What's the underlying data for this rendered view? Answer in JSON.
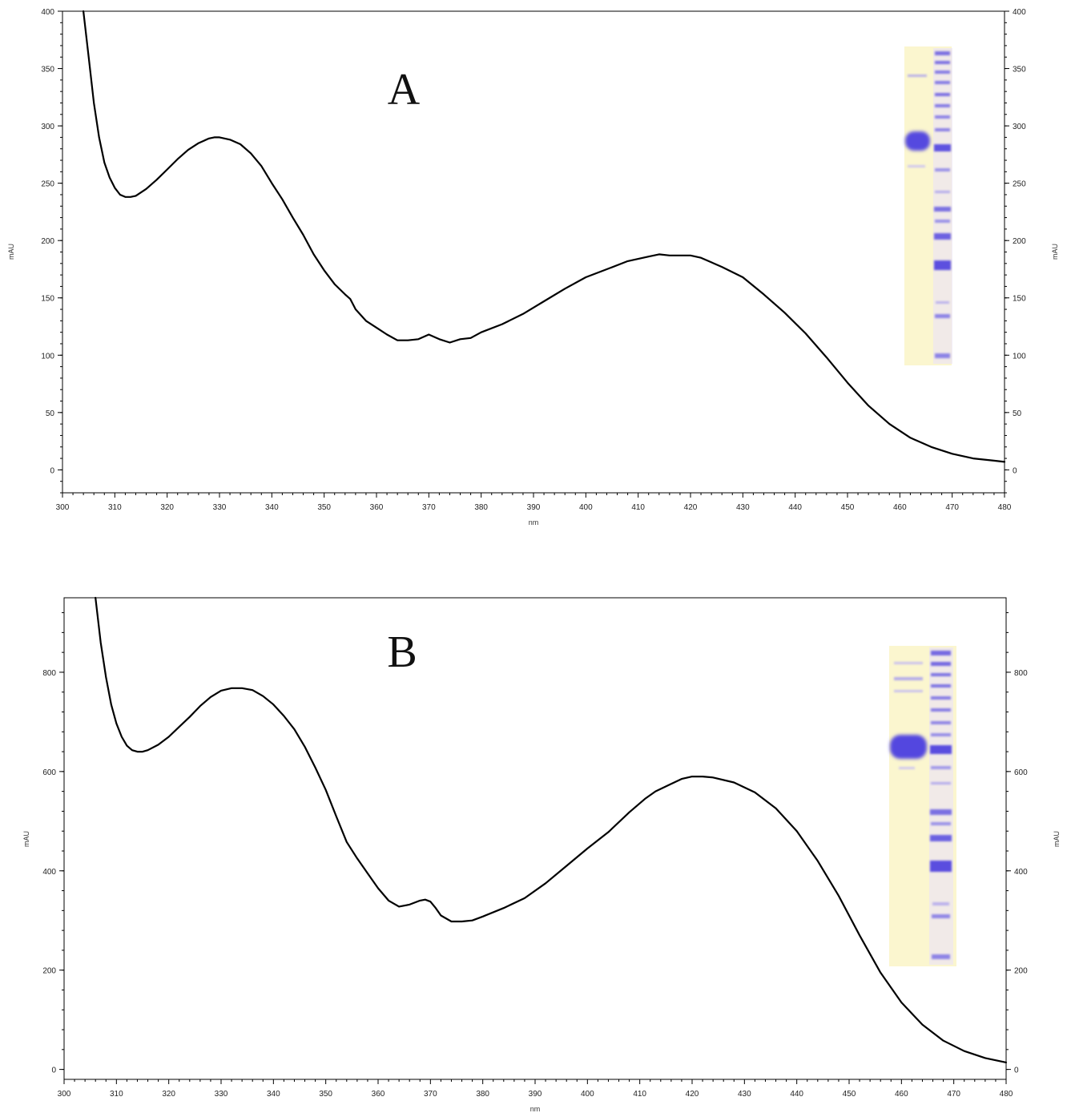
{
  "colors": {
    "line": "#000000",
    "gel_background": "#fbf6cf",
    "gel_band": "#6a5de0"
  },
  "chart_data": [
    {
      "type": "line",
      "panel_label": "A",
      "xlabel": "nm",
      "ylabel": "mAU",
      "ylabel_right": "mAU",
      "xlim": [
        300,
        480
      ],
      "ylim": [
        -20,
        400
      ],
      "xticks": [
        300,
        310,
        320,
        330,
        340,
        350,
        360,
        370,
        380,
        390,
        400,
        410,
        420,
        430,
        440,
        450,
        460,
        470,
        480
      ],
      "yticks": [
        0,
        50,
        100,
        150,
        200,
        250,
        300,
        350,
        400
      ],
      "grid": false,
      "inset": "SDS-PAGE gel image (sample lane and marker lane), top-right",
      "series": [
        {
          "x": [
            304,
            305,
            306,
            307,
            308,
            309,
            310,
            311,
            312,
            313,
            314,
            316,
            318,
            320,
            322,
            324,
            326,
            328,
            329,
            330,
            332,
            334,
            336,
            338,
            340,
            342,
            344,
            346,
            348,
            350,
            352,
            354,
            355,
            356,
            358,
            360,
            362,
            364,
            366,
            368,
            370,
            372,
            374,
            376,
            378,
            380,
            384,
            388,
            392,
            396,
            400,
            404,
            408,
            412,
            414,
            416,
            420,
            422,
            426,
            430,
            434,
            438,
            442,
            446,
            450,
            454,
            458,
            462,
            466,
            470,
            474,
            478,
            480
          ],
          "y": [
            400,
            360,
            320,
            290,
            268,
            255,
            246,
            240,
            238,
            238,
            239,
            245,
            253,
            262,
            271,
            279,
            285,
            289,
            290,
            290,
            288,
            284,
            276,
            265,
            250,
            236,
            220,
            205,
            188,
            174,
            162,
            153,
            149,
            140,
            130,
            124,
            118,
            113,
            113,
            114,
            118,
            114,
            111,
            114,
            115,
            120,
            127,
            136,
            147,
            158,
            168,
            175,
            182,
            186,
            188,
            187,
            187,
            185,
            177,
            168,
            153,
            137,
            119,
            98,
            76,
            56,
            40,
            28,
            20,
            14,
            10,
            8,
            7
          ]
        }
      ]
    },
    {
      "type": "line",
      "panel_label": "B",
      "xlabel": "nm",
      "ylabel": "mAU",
      "ylabel_right": "mAU",
      "xlim": [
        300,
        480
      ],
      "ylim": [
        -20,
        950
      ],
      "xticks": [
        300,
        310,
        320,
        330,
        340,
        350,
        360,
        370,
        380,
        390,
        400,
        410,
        420,
        430,
        440,
        450,
        460,
        470,
        480
      ],
      "yticks": [
        0,
        200,
        400,
        600,
        800
      ],
      "grid": false,
      "inset": "SDS-PAGE gel image (sample lane and marker lane), top-right",
      "series": [
        {
          "x": [
            306,
            307,
            308,
            309,
            310,
            311,
            312,
            313,
            314,
            315,
            316,
            318,
            320,
            322,
            324,
            326,
            328,
            330,
            332,
            334,
            336,
            338,
            340,
            342,
            344,
            346,
            348,
            350,
            352,
            354,
            356,
            358,
            360,
            362,
            364,
            366,
            368,
            369,
            370,
            371,
            372,
            374,
            376,
            378,
            380,
            384,
            388,
            392,
            396,
            400,
            404,
            408,
            411,
            413,
            416,
            418,
            420,
            422,
            424,
            428,
            432,
            436,
            440,
            444,
            448,
            452,
            456,
            460,
            464,
            468,
            472,
            476,
            480
          ],
          "y": [
            950,
            860,
            790,
            735,
            697,
            670,
            652,
            643,
            640,
            640,
            643,
            654,
            670,
            690,
            710,
            732,
            750,
            763,
            768,
            768,
            764,
            752,
            735,
            712,
            685,
            650,
            608,
            563,
            510,
            458,
            425,
            395,
            365,
            340,
            328,
            332,
            340,
            342,
            338,
            325,
            310,
            298,
            298,
            300,
            308,
            325,
            345,
            375,
            410,
            445,
            478,
            518,
            545,
            560,
            575,
            585,
            590,
            590,
            588,
            578,
            558,
            526,
            480,
            420,
            350,
            270,
            195,
            135,
            90,
            58,
            37,
            23,
            14
          ]
        }
      ]
    }
  ]
}
